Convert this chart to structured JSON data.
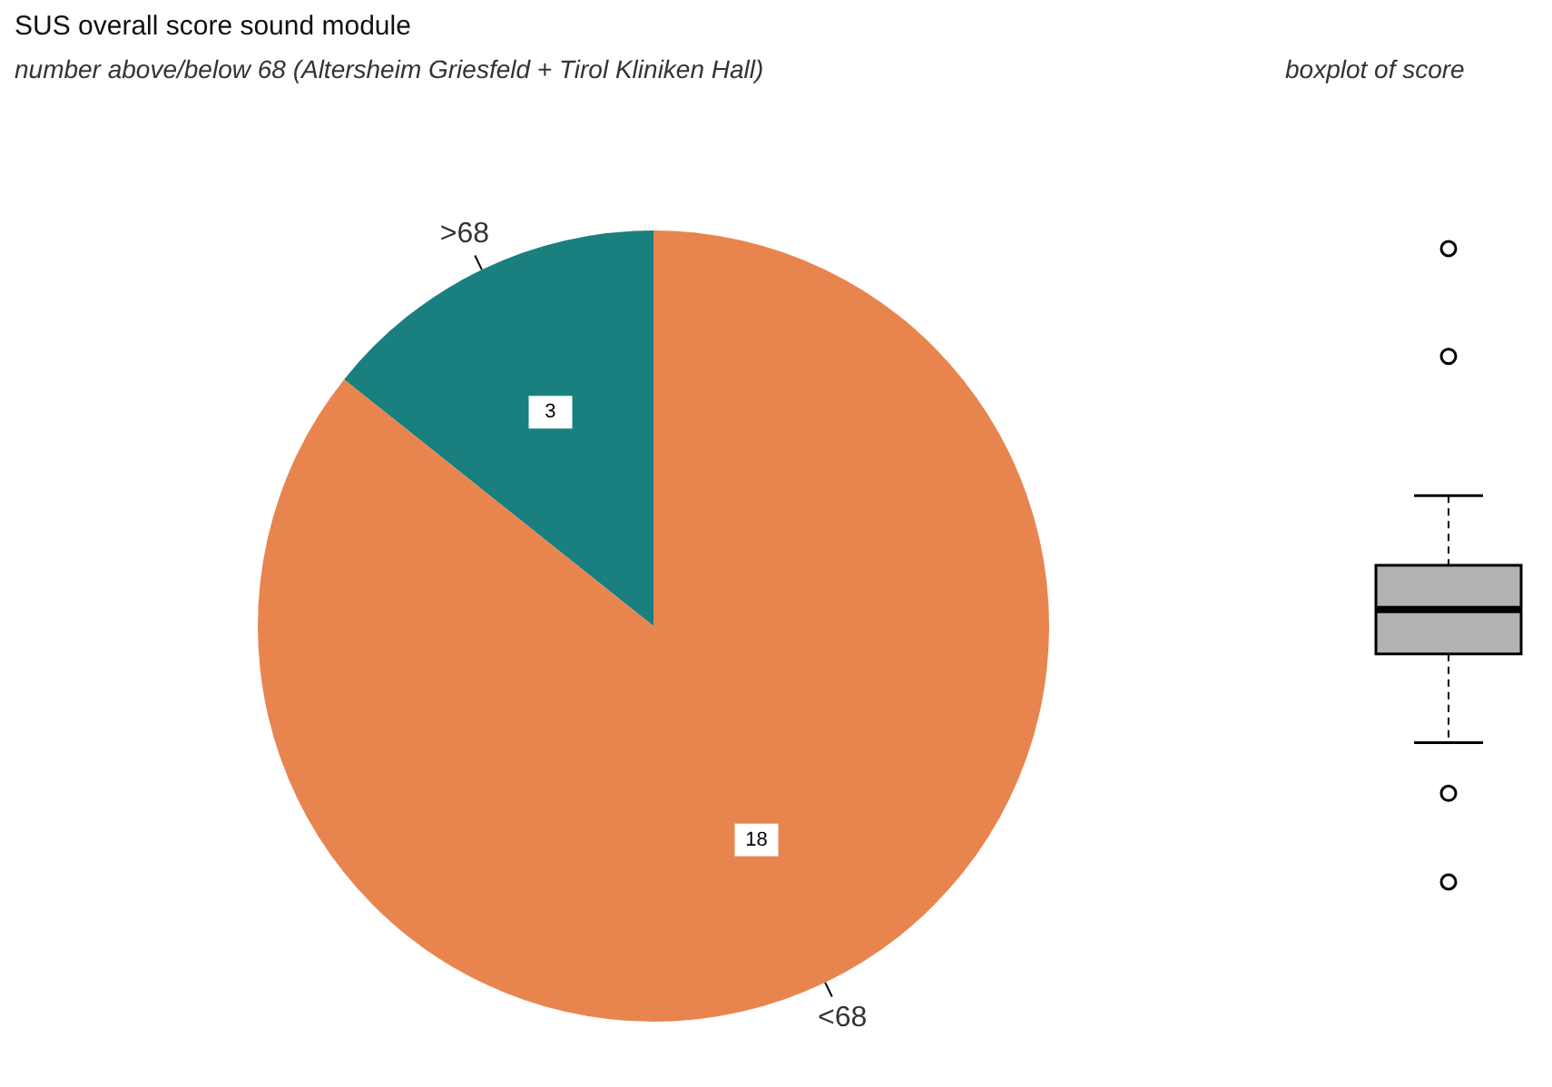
{
  "chart_data": [
    {
      "type": "pie",
      "title": "SUS overall score sound module",
      "subtitle": "number above/below 68 (Altersheim Griesfeld + Tirol Kliniken Hall)",
      "categories": [
        ">68",
        "<68"
      ],
      "values": [
        3,
        18
      ],
      "colors": [
        "#1a7f7f",
        "#e8854f"
      ],
      "data_labels": true
    },
    {
      "type": "other",
      "title": "boxplot of score"
    }
  ]
}
